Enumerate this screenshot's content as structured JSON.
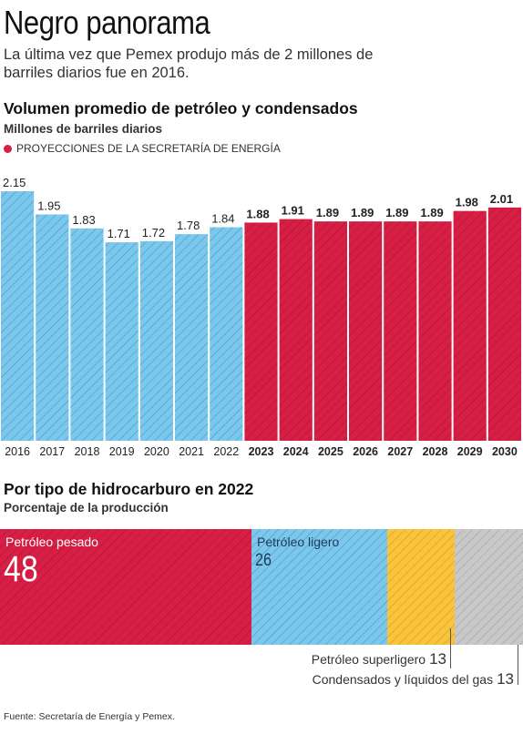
{
  "header": {
    "title": "Negro panorama",
    "subtitle": "La última vez que Pemex produjo más de 2 millones de barriles diarios fue en 2016."
  },
  "section1": {
    "title": "Volumen promedio de petróleo y condensados",
    "subtitle": "Millones de barriles diarios",
    "legend": "PROYECCIONES DE LA SECRETARÍA DE ENERGÍA"
  },
  "section2": {
    "title": "Por tipo de hidrocarburo en 2022",
    "subtitle": "Porcentaje de la producción"
  },
  "source": "Fuente: Secretaría de Energía y Pemex.",
  "colors": {
    "historical": "#7cc8ec",
    "projection": "#d71f45",
    "superligero": "#f9c33c",
    "condensados": "#c8c8c8"
  },
  "chart_data": [
    {
      "type": "bar",
      "categories": [
        "2016",
        "2017",
        "2018",
        "2019",
        "2020",
        "2021",
        "2022",
        "2023",
        "2024",
        "2025",
        "2026",
        "2027",
        "2028",
        "2029",
        "2030"
      ],
      "values": [
        2.15,
        1.95,
        1.83,
        1.71,
        1.72,
        1.78,
        1.84,
        1.88,
        1.91,
        1.89,
        1.89,
        1.89,
        1.89,
        1.98,
        2.01
      ],
      "value_labels": [
        "2.15",
        "1.95",
        "1.83",
        "1.71",
        "1.72",
        "1.78",
        "1.84",
        "1.88",
        "1.91",
        "1.89",
        "1.89",
        "1.89",
        "1.89",
        "1.98",
        "2.01"
      ],
      "projected": [
        false,
        false,
        false,
        false,
        false,
        false,
        false,
        true,
        true,
        true,
        true,
        true,
        true,
        true,
        true
      ],
      "title": "Volumen promedio de petróleo y condensados",
      "ylabel": "Millones de barriles diarios",
      "ylim": [
        0,
        2.15
      ],
      "grid": false
    },
    {
      "type": "bar",
      "stacked": true,
      "title": "Por tipo de hidrocarburo en 2022",
      "ylabel": "Porcentaje de la producción",
      "segments": [
        {
          "name": "Petróleo pesado",
          "value": 48,
          "display": "48"
        },
        {
          "name": "Petróleo ligero",
          "value": 26,
          "display": "26"
        },
        {
          "name": "Petróleo superligero",
          "value": 13,
          "display": "13"
        },
        {
          "name": "Condensados y líquidos del gas",
          "value": 13,
          "display": "13"
        }
      ]
    }
  ]
}
